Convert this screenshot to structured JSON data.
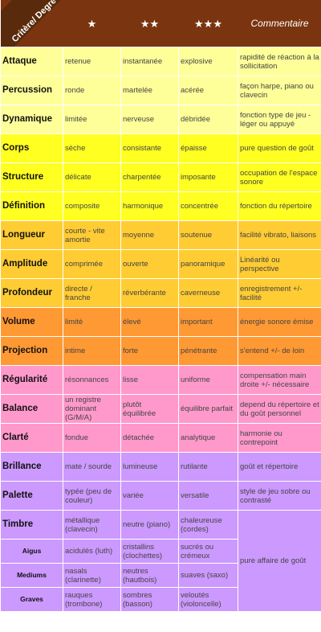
{
  "header": {
    "corner": "Critère/ Degré",
    "one": "★",
    "two": "★★",
    "three": "★★★",
    "comment": "Commentaire"
  },
  "rows": [
    {
      "label": "Attaque",
      "one": "retenue",
      "two": "instantanée",
      "three": "explosive",
      "comment": "rapidité de réaction à la sollicitation"
    },
    {
      "label": "Percussion",
      "one": "ronde",
      "two": "martelée",
      "three": "acérée",
      "comment": "façon harpe, piano ou clavecin"
    },
    {
      "label": "Dynamique",
      "one": "limitée",
      "two": "nerveuse",
      "three": "débridée",
      "comment": "fonction type de jeu - léger ou appuyé"
    },
    {
      "label": "Corps",
      "one": "sèche",
      "two": "consistante",
      "three": "épaisse",
      "comment": "pure question de goût"
    },
    {
      "label": "Structure",
      "one": "délicate",
      "two": "charpentée",
      "three": "imposante",
      "comment": "occupation de l'espace sonore"
    },
    {
      "label": "Définition",
      "one": "composite",
      "two": "harmonique",
      "three": "concentrée",
      "comment": "fonction du répertoire"
    },
    {
      "label": "Longueur",
      "one": "courte - vite amortie",
      "two": "moyenne",
      "three": "soutenue",
      "comment": "facilité vibrato, liaisons"
    },
    {
      "label": "Amplitude",
      "one": "comprimée",
      "two": "ouverte",
      "three": "panoramique",
      "comment": "Linéarité ou perspective"
    },
    {
      "label": "Profondeur",
      "one": "directe / franche",
      "two": "réverbérante",
      "three": "caverneuse",
      "comment": "enregistrement +/- facilité"
    },
    {
      "label": "Volume",
      "one": "limité",
      "two": "élevé",
      "three": "important",
      "comment": "énergie sonore émise"
    },
    {
      "label": "Projection",
      "one": "intime",
      "two": "forte",
      "three": "pénétrante",
      "comment": "s'entend +/- de loin"
    },
    {
      "label": "Régularité",
      "one": "résonnances",
      "two": "lisse",
      "three": "uniforme",
      "comment": "compensation main droite +/- nécessaire"
    },
    {
      "label": "Balance",
      "one": "un registre dominant (G/M/A)",
      "two": "plutôt équilibrée",
      "three": "équilibre parfait",
      "comment": "depend du répertoire et du goût personnel"
    },
    {
      "label": "Clarté",
      "one": "fondue",
      "two": "détachée",
      "three": "analytique",
      "comment": "harmonie ou contrepoint"
    },
    {
      "label": "Brillance",
      "one": "mate / sourde",
      "two": "lumineuse",
      "three": "rutilante",
      "comment": "goût et répertoire"
    },
    {
      "label": "Palette",
      "one": "typée (peu de couleur)",
      "two": "variée",
      "three": "versatile",
      "comment": "style de jeu sobre ou contrasté"
    },
    {
      "label": "Timbre",
      "one": "métallique (clavecin)",
      "two": "neutre (piano)",
      "three": "chaleureuse (cordes)",
      "comment": "pure affaire de goût"
    },
    {
      "label": "Aigus",
      "one": "acidulés (luth)",
      "two": "cristallins (clochettes)",
      "three": "sucrés ou crémeux"
    },
    {
      "label": "Mediums",
      "one": "nasals (clarinette)",
      "two": "neutres (hautbois)",
      "three": "suaves (saxo)"
    },
    {
      "label": "Graves",
      "one": "rauques (trombone)",
      "two": "sombres (basson)",
      "three": "veloutés (violoncelle)"
    }
  ]
}
